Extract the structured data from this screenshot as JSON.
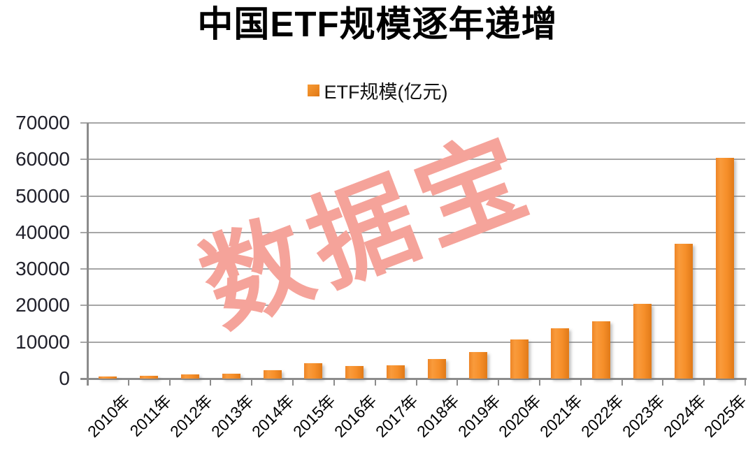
{
  "title": {
    "full": "中国ETF规模逐年递增",
    "prefix": "中国",
    "etf": "ETF",
    "suffix": "规模逐年递增"
  },
  "legend": {
    "label": "ETF规模(亿元)"
  },
  "watermark": {
    "text": "数据宝",
    "color": "#F5A39A"
  },
  "chart_data": {
    "type": "bar",
    "title": "中国ETF规模逐年递增",
    "legend_entries": [
      "ETF规模(亿元)"
    ],
    "legend_position": "top center",
    "unit": "亿元",
    "categories": [
      "2010年",
      "2011年",
      "2012年",
      "2013年",
      "2014年",
      "2015年",
      "2016年",
      "2017年",
      "2018年",
      "2019年",
      "2020年",
      "2021年",
      "2022年",
      "2023年",
      "2024年",
      "2025年"
    ],
    "values": [
      650,
      700,
      1100,
      1400,
      2200,
      4200,
      3400,
      3700,
      5400,
      7200,
      10800,
      13700,
      15700,
      20500,
      37000,
      60400
    ],
    "ylim": [
      0,
      70000
    ],
    "yticks": [
      0,
      10000,
      20000,
      30000,
      40000,
      50000,
      60000,
      70000
    ],
    "grid": "horizontal",
    "colors": {
      "bar_main": "#F68F2A",
      "bar_gradient": [
        "#EE8526",
        "#F99B3C",
        "#F68F2A",
        "#E17A18"
      ],
      "gridline": "#A6A6A6",
      "axis": "#8C8C8C",
      "tick_label": "#21212B",
      "x_label": "#000000",
      "title_text": "#000000",
      "watermark": "#F5A39A"
    }
  }
}
